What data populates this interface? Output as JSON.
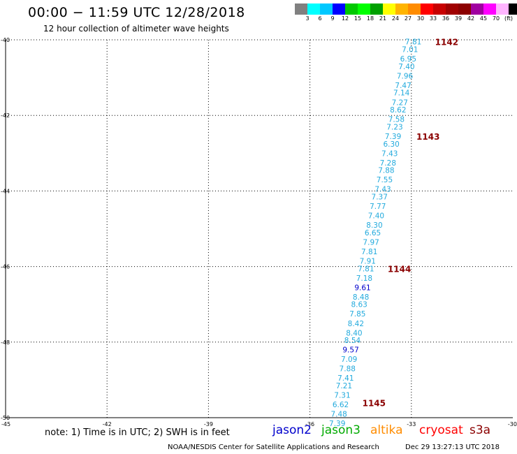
{
  "header": {
    "title": "00:00 − 11:59 UTC 12/28/2018",
    "subtitle": "12 hour collection of altimeter wave heights"
  },
  "colorbar": {
    "colors": [
      "#808080",
      "#00ffff",
      "#00c8ff",
      "#0000ff",
      "#00c800",
      "#00ff00",
      "#00a000",
      "#ffff00",
      "#ffb400",
      "#ff8c00",
      "#ff0000",
      "#c80000",
      "#a00000",
      "#8c0000",
      "#a000a0",
      "#ff00ff",
      "#ffb4ff",
      "#000000"
    ],
    "labels": [
      "3",
      "6",
      "9",
      "12",
      "15",
      "18",
      "21",
      "24",
      "27",
      "30",
      "33",
      "36",
      "39",
      "42",
      "45",
      "70",
      "(ft)"
    ]
  },
  "chart_data": {
    "type": "scatter",
    "title": "00:00 − 11:59 UTC 12/28/2018",
    "subtitle": "12 hour collection of altimeter wave heights",
    "xlim": [
      -45,
      -30
    ],
    "ylim": [
      -50,
      -40
    ],
    "xticks": [
      "-45",
      "-42",
      "-39",
      "-36",
      "-33",
      "-30"
    ],
    "yticks": [
      "-40",
      "-42",
      "-44",
      "-46",
      "-48",
      "-50"
    ],
    "grid": true,
    "series": [
      {
        "name": "s3a",
        "color": "#22aadd",
        "points": [
          {
            "x": -32.7,
            "y": -40.05,
            "v": "7.81"
          },
          {
            "x": -32.8,
            "y": -40.25,
            "v": "7.01"
          },
          {
            "x": -32.85,
            "y": -40.5,
            "v": "6.95"
          },
          {
            "x": -32.9,
            "y": -40.7,
            "v": "7.40"
          },
          {
            "x": -32.95,
            "y": -40.95,
            "v": "7.96"
          },
          {
            "x": -33.0,
            "y": -41.2,
            "v": "7.47"
          },
          {
            "x": -33.05,
            "y": -41.4,
            "v": "7.14"
          },
          {
            "x": -33.1,
            "y": -41.65,
            "v": "7.27"
          },
          {
            "x": -33.15,
            "y": -41.85,
            "v": "8.62"
          },
          {
            "x": -33.2,
            "y": -42.1,
            "v": "7.58"
          },
          {
            "x": -33.25,
            "y": -42.3,
            "v": "7.23"
          },
          {
            "x": -33.3,
            "y": -42.55,
            "v": "7.39"
          },
          {
            "x": -33.35,
            "y": -42.75,
            "v": "6.30"
          },
          {
            "x": -33.4,
            "y": -43.0,
            "v": "7.43"
          },
          {
            "x": -33.45,
            "y": -43.25,
            "v": "7.28"
          },
          {
            "x": -33.5,
            "y": -43.45,
            "v": "7.88"
          },
          {
            "x": -33.55,
            "y": -43.7,
            "v": "7.55"
          },
          {
            "x": -33.6,
            "y": -43.95,
            "v": "7.43"
          },
          {
            "x": -33.7,
            "y": -44.15,
            "v": "7.37"
          },
          {
            "x": -33.75,
            "y": -44.4,
            "v": "7.77"
          },
          {
            "x": -33.8,
            "y": -44.65,
            "v": "7.40"
          },
          {
            "x": -33.85,
            "y": -44.9,
            "v": "8.30"
          },
          {
            "x": -33.9,
            "y": -45.1,
            "v": "6.65"
          },
          {
            "x": -33.95,
            "y": -45.35,
            "v": "7.97"
          },
          {
            "x": -34.0,
            "y": -45.6,
            "v": "7.81"
          },
          {
            "x": -34.05,
            "y": -45.85,
            "v": "7.91"
          },
          {
            "x": -34.1,
            "y": -46.05,
            "v": "7.81"
          },
          {
            "x": -34.15,
            "y": -46.3,
            "v": "7.18"
          },
          {
            "x": -34.2,
            "y": -46.55,
            "v": "9.61",
            "color": "#0000cc"
          },
          {
            "x": -34.25,
            "y": -46.8,
            "v": "8.48"
          },
          {
            "x": -34.3,
            "y": -47.0,
            "v": "8.63"
          },
          {
            "x": -34.35,
            "y": -47.25,
            "v": "7.85"
          },
          {
            "x": -34.4,
            "y": -47.5,
            "v": "8.42"
          },
          {
            "x": -34.45,
            "y": -47.75,
            "v": "8.40"
          },
          {
            "x": -34.5,
            "y": -47.95,
            "v": "8.54"
          },
          {
            "x": -34.55,
            "y": -48.2,
            "v": "9.57",
            "color": "#0000cc"
          },
          {
            "x": -34.6,
            "y": -48.45,
            "v": "7.09"
          },
          {
            "x": -34.65,
            "y": -48.7,
            "v": "7.88"
          },
          {
            "x": -34.7,
            "y": -48.95,
            "v": "7.41"
          },
          {
            "x": -34.75,
            "y": -49.15,
            "v": "7.21"
          },
          {
            "x": -34.8,
            "y": -49.4,
            "v": "7.31"
          },
          {
            "x": -34.85,
            "y": -49.65,
            "v": "6.62"
          },
          {
            "x": -34.9,
            "y": -49.9,
            "v": "7.48"
          },
          {
            "x": -34.95,
            "y": -50.15,
            "v": "7.39"
          }
        ]
      }
    ],
    "annotations": [
      {
        "x": -32.3,
        "y": -40.05,
        "text": "1142",
        "color": "#8b0000"
      },
      {
        "x": -32.85,
        "y": -42.55,
        "text": "1143",
        "color": "#8b0000"
      },
      {
        "x": -33.7,
        "y": -46.05,
        "text": "1144",
        "color": "#8b0000"
      },
      {
        "x": -34.45,
        "y": -49.6,
        "text": "1145",
        "color": "#8b0000"
      }
    ]
  },
  "note": "note:  1) Time is in UTC; 2) SWH is in feet",
  "legend": [
    {
      "label": "jason2",
      "color": "#0000cc"
    },
    {
      "label": "jason3",
      "color": "#00aa00"
    },
    {
      "label": "altika",
      "color": "#ff8c00"
    },
    {
      "label": "cryosat",
      "color": "#ff0000"
    },
    {
      "label": "s3a",
      "color": "#8b0000"
    }
  ],
  "footer": {
    "credit": "NOAA/NESDIS Center for Satellite Applications and Research",
    "timestamp": "Dec 29 13:27:13 UTC 2018"
  }
}
